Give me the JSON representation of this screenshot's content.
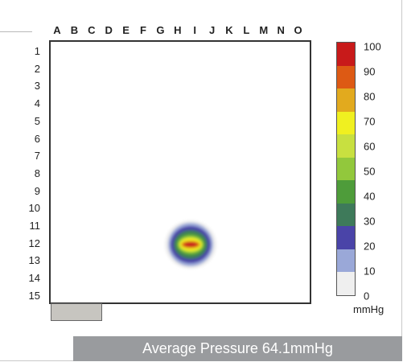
{
  "chart_data": {
    "type": "heatmap",
    "columns": [
      "A",
      "B",
      "C",
      "D",
      "E",
      "F",
      "G",
      "H",
      "I",
      "J",
      "K",
      "L",
      "M",
      "N",
      "O"
    ],
    "rows": [
      "1",
      "2",
      "3",
      "4",
      "5",
      "6",
      "7",
      "8",
      "9",
      "10",
      "11",
      "12",
      "13",
      "14",
      "15"
    ],
    "colorbar": {
      "ticks": [
        "100",
        "90",
        "80",
        "70",
        "60",
        "50",
        "40",
        "30",
        "20",
        "10",
        "0"
      ],
      "unit": "mmHg",
      "colors": [
        "#c81a1a",
        "#dd5a14",
        "#e2aa1e",
        "#f0f020",
        "#c8e040",
        "#92c83c",
        "#4e9c3a",
        "#3e7a5a",
        "#4a44a8",
        "#9aa8d8",
        "#efefef"
      ]
    },
    "hotspot": {
      "center_col": "H",
      "center_row": "12",
      "peak_mmHg": 100
    },
    "summary": "Average Pressure 64.1mmHg"
  }
}
